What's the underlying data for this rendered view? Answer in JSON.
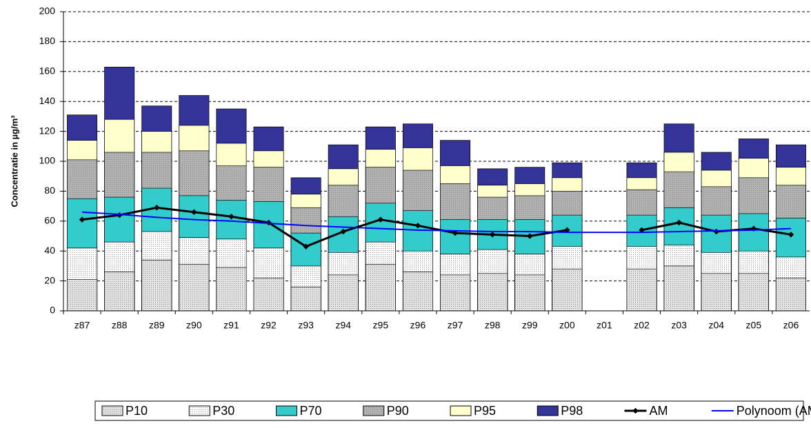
{
  "chart_data": {
    "type": "bar",
    "y_label": "Concentratie in µg/m³",
    "categories": [
      "z87",
      "z88",
      "z89",
      "z90",
      "z91",
      "z92",
      "z93",
      "z94",
      "z95",
      "z96",
      "z97",
      "z98",
      "z99",
      "z00",
      "z01",
      "z02",
      "z03",
      "z04",
      "z05",
      "z06"
    ],
    "series": [
      {
        "name": "P10",
        "color": "#e3e3e3",
        "values": [
          21,
          26,
          34,
          31,
          29,
          22,
          16,
          24,
          31,
          26,
          24,
          25,
          24,
          28,
          null,
          28,
          30,
          25,
          25,
          22
        ]
      },
      {
        "name": "P30",
        "color": "#ffffff",
        "values": [
          42,
          46,
          53,
          49,
          48,
          42,
          30,
          39,
          46,
          40,
          38,
          41,
          38,
          43,
          null,
          43,
          44,
          39,
          40,
          36
        ]
      },
      {
        "name": "P70",
        "color": "#33cccc",
        "values": [
          75,
          76,
          82,
          77,
          74,
          73,
          52,
          63,
          72,
          67,
          61,
          61,
          61,
          64,
          null,
          64,
          69,
          64,
          65,
          62
        ]
      },
      {
        "name": "P90",
        "color": "#b2b2b2",
        "values": [
          101,
          106,
          106,
          107,
          97,
          96,
          69,
          84,
          96,
          94,
          85,
          76,
          77,
          80,
          null,
          81,
          93,
          83,
          89,
          84
        ]
      },
      {
        "name": "P95",
        "color": "#ffffcc",
        "values": [
          114,
          128,
          120,
          124,
          112,
          107,
          78,
          95,
          108,
          109,
          97,
          84,
          85,
          89,
          null,
          89,
          106,
          94,
          102,
          96
        ]
      },
      {
        "name": "P98",
        "color": "#333399",
        "values": [
          131,
          163,
          137,
          144,
          135,
          123,
          89,
          111,
          123,
          125,
          114,
          95,
          96,
          99,
          null,
          99,
          125,
          106,
          115,
          111
        ]
      },
      {
        "name": "AM",
        "type": "line",
        "color": "#000000",
        "marker": true,
        "values": [
          61,
          64,
          69,
          66,
          63,
          59,
          43,
          53,
          61,
          57,
          52,
          51,
          50,
          54,
          null,
          54,
          59,
          53,
          55,
          51
        ]
      },
      {
        "name": "Polynoom (AM)",
        "type": "line",
        "color": "#0000ff",
        "marker": false,
        "values": [
          66,
          64.5,
          62.5,
          61,
          60,
          58.5,
          57,
          56,
          55,
          54,
          53.5,
          53,
          53,
          52.5,
          52.5,
          52.5,
          53,
          53.5,
          54,
          55
        ]
      }
    ],
    "ylim": [
      0,
      200
    ],
    "yticks": [
      0,
      20,
      40,
      60,
      80,
      100,
      120,
      140,
      160,
      180,
      200
    ],
    "grid": true,
    "legend": "bottom"
  }
}
